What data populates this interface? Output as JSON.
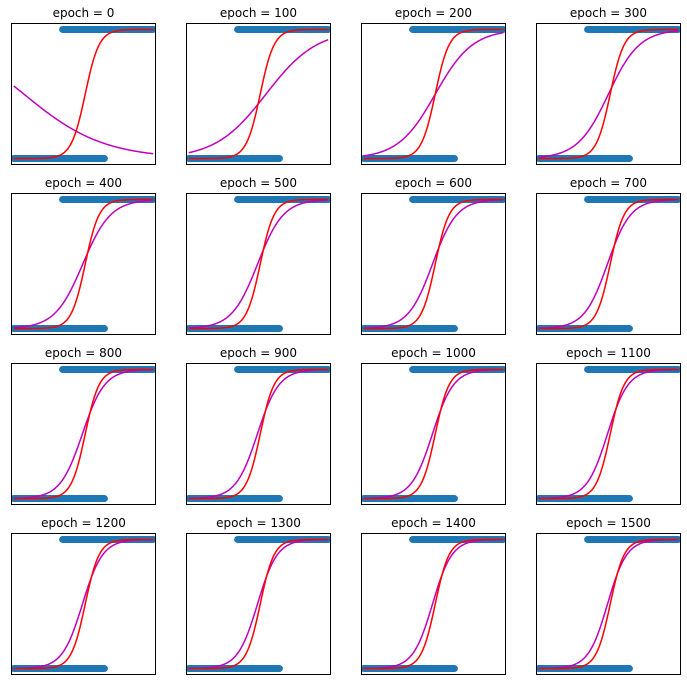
{
  "colors": {
    "scatter": "#1f77b4",
    "true_curve": "#ff0000",
    "fitted_curve": "#bf00bf",
    "frame": "#000000",
    "background": "#ffffff"
  },
  "chart_data": {
    "type": "line",
    "layout": "4x4 grid of subplots",
    "axes_ticks": "hidden",
    "grid": false,
    "shared_scatter": {
      "description_class": [
        "class 0 at y=0",
        "class 1 at y=1"
      ],
      "class0_x_range": [
        -5,
        1.5
      ],
      "class1_x_range": [
        -1.5,
        5
      ]
    },
    "xlim": [
      -5.2,
      5.2
    ],
    "ylim": [
      -0.05,
      1.05
    ],
    "true_curve": {
      "type": "sigmoid",
      "w": 2.0,
      "b": -0.25
    },
    "panels": [
      {
        "title": "epoch = 0",
        "fitted": {
          "w": -0.35,
          "b": -1.5
        }
      },
      {
        "title": "epoch = 100",
        "fitted": {
          "w": 0.55,
          "b": -0.3
        }
      },
      {
        "title": "epoch = 200",
        "fitted": {
          "w": 0.75,
          "b": -0.1
        }
      },
      {
        "title": "epoch = 300",
        "fitted": {
          "w": 0.9,
          "b": 0.0
        }
      },
      {
        "title": "epoch = 400",
        "fitted": {
          "w": 1.0,
          "b": 0.05
        }
      },
      {
        "title": "epoch = 500",
        "fitted": {
          "w": 1.08,
          "b": 0.07
        }
      },
      {
        "title": "epoch = 600",
        "fitted": {
          "w": 1.15,
          "b": 0.08
        }
      },
      {
        "title": "epoch = 700",
        "fitted": {
          "w": 1.2,
          "b": 0.09
        }
      },
      {
        "title": "epoch = 800",
        "fitted": {
          "w": 1.25,
          "b": 0.1
        }
      },
      {
        "title": "epoch = 900",
        "fitted": {
          "w": 1.29,
          "b": 0.1
        }
      },
      {
        "title": "epoch = 1000",
        "fitted": {
          "w": 1.32,
          "b": 0.1
        }
      },
      {
        "title": "epoch = 1100",
        "fitted": {
          "w": 1.35,
          "b": 0.1
        }
      },
      {
        "title": "epoch = 1200",
        "fitted": {
          "w": 1.38,
          "b": 0.1
        }
      },
      {
        "title": "epoch = 1300",
        "fitted": {
          "w": 1.41,
          "b": 0.1
        }
      },
      {
        "title": "epoch = 1400",
        "fitted": {
          "w": 1.43,
          "b": 0.1
        }
      },
      {
        "title": "epoch = 1500",
        "fitted": {
          "w": 1.45,
          "b": 0.1
        }
      }
    ]
  }
}
